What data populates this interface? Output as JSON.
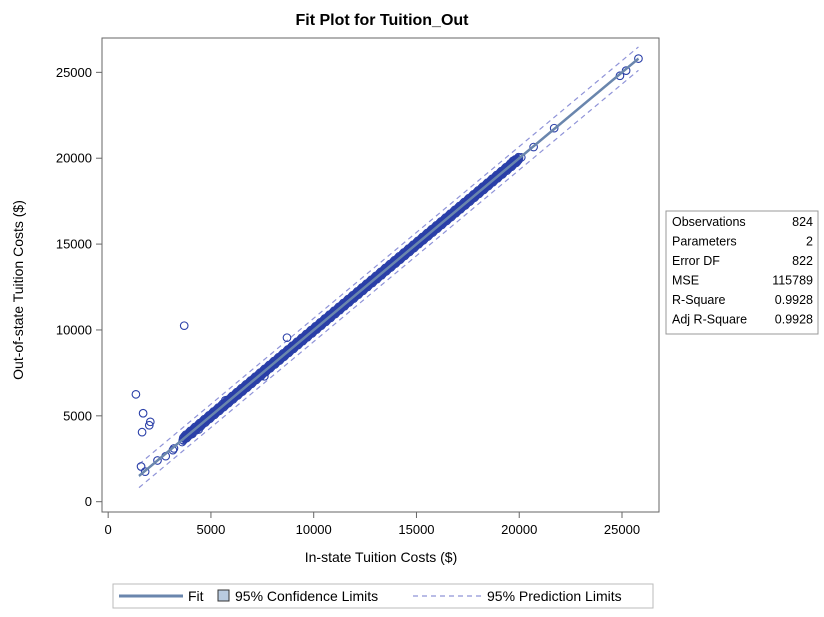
{
  "chart_data": {
    "type": "scatter",
    "title": "Fit Plot for Tuition_Out",
    "xlabel": "In-state Tuition Costs ($)",
    "ylabel": "Out-of-state Tuition Costs ($)",
    "xlim": [
      -300,
      26800
    ],
    "ylim": [
      -600,
      27000
    ],
    "xticks": [
      0,
      5000,
      10000,
      15000,
      20000,
      25000
    ],
    "yticks": [
      0,
      5000,
      10000,
      15000,
      20000,
      25000
    ],
    "xtick_labels": [
      "0",
      "5000",
      "10000",
      "15000",
      "20000",
      "25000"
    ],
    "ytick_labels": [
      "0",
      "5000",
      "10000",
      "15000",
      "20000",
      "25000"
    ],
    "grid": false,
    "fit": {
      "intercept": 0,
      "slope": 1,
      "x_range": [
        1500,
        25800
      ]
    },
    "confidence_halfwidth": 90,
    "prediction_halfwidth": 680,
    "outliers": [
      [
        1350,
        6250
      ],
      [
        1700,
        5150
      ],
      [
        1650,
        4050
      ],
      [
        2050,
        4650
      ],
      [
        2000,
        4450
      ],
      [
        3700,
        10250
      ],
      [
        8700,
        9550
      ],
      [
        1600,
        2050
      ],
      [
        1800,
        1750
      ],
      [
        2400,
        2400
      ],
      [
        2800,
        2650
      ],
      [
        3200,
        3100
      ],
      [
        3150,
        3000
      ],
      [
        4100,
        3950
      ],
      [
        4400,
        4200
      ],
      [
        5700,
        5900
      ],
      [
        7600,
        7300
      ],
      [
        20100,
        20050
      ],
      [
        20700,
        20650
      ],
      [
        21700,
        21750
      ],
      [
        24900,
        24800
      ],
      [
        25200,
        25100
      ],
      [
        25800,
        25800
      ],
      [
        19700,
        19850
      ],
      [
        18900,
        18950
      ]
    ],
    "dense_range": [
      3600,
      20000
    ],
    "stats_table": [
      {
        "label": "Observations",
        "value": "824"
      },
      {
        "label": "Parameters",
        "value": "2"
      },
      {
        "label": "Error DF",
        "value": "822"
      },
      {
        "label": "MSE",
        "value": "115789"
      },
      {
        "label": "R-Square",
        "value": "0.9928"
      },
      {
        "label": "Adj R-Square",
        "value": "0.9928"
      }
    ],
    "legend": {
      "placement": "bottom",
      "items": [
        {
          "kind": "fit",
          "label": "Fit"
        },
        {
          "kind": "confidence",
          "label": "95% Confidence Limits"
        },
        {
          "kind": "prediction",
          "label": "95% Prediction Limits"
        }
      ]
    },
    "colors": {
      "marker": "#2a3fa8",
      "fit_line": "#6a86ad",
      "confidence_fill": "#b9cbe0",
      "prediction_line": "#8f93d8",
      "frame": "#666666"
    }
  }
}
